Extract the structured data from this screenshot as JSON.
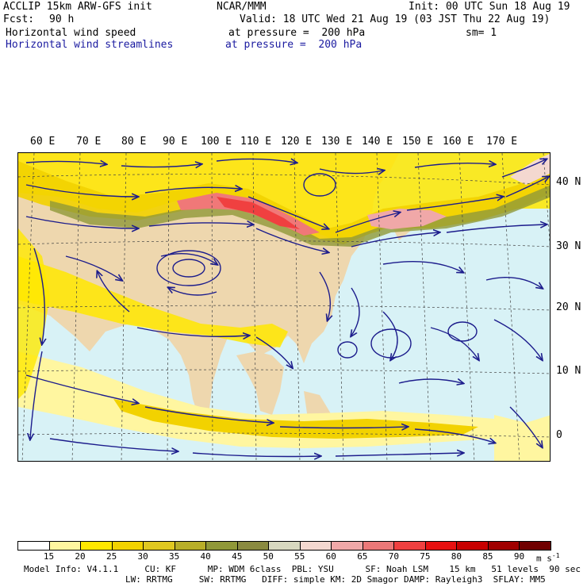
{
  "header": {
    "model": "ACCLIP 15km ARW-GFS init",
    "org": "NCAR/MMM",
    "init": "Init: 00 UTC Sun 18 Aug 19",
    "fcst_label": "Fcst:",
    "fcst_value": "90 h",
    "valid": "Valid: 18 UTC Wed 21 Aug 19 (03 JST Thu 22 Aug 19)",
    "field1": "Horizontal wind speed",
    "field1_level": "at pressure =  200 hPa",
    "sm": "sm= 1",
    "field2": "Horizontal wind streamlines",
    "field2_level": "at pressure =  200 hPa"
  },
  "map": {
    "lon_labels": [
      "60 E",
      "70 E",
      "80 E",
      "90 E",
      "100 E",
      "110 E",
      "120 E",
      "130 E",
      "140 E",
      "150 E",
      "160 E",
      "170 E"
    ],
    "lat_labels": [
      "40 N",
      "30 N",
      "20 N",
      "10 N",
      "0"
    ],
    "colors": {
      "ocean": "#d8f2f6",
      "land": "#eed7ae",
      "streamline": "#1c1c8c"
    }
  },
  "colorbar": {
    "levels": [
      "15",
      "20",
      "25",
      "30",
      "35",
      "40",
      "45",
      "50",
      "55",
      "60",
      "65",
      "70",
      "75",
      "80",
      "85",
      "90"
    ],
    "colors": [
      "#ffffff",
      "#fff6a0",
      "#ffe800",
      "#f2d200",
      "#e0c820",
      "#b8ae28",
      "#909838",
      "#8a8a40",
      "#d8d8c0",
      "#f4d8d0",
      "#f0a8a8",
      "#ec7878",
      "#f04040",
      "#e81010",
      "#c80000",
      "#a00000",
      "#700000"
    ],
    "unit": "m s",
    "unit_exp": "-1"
  },
  "footer": {
    "line1": "Model Info: V4.1.1     CU: KF      MP: WDM 6class  PBL: YSU      SF: Noah LSM    15 km   51 levels  90 sec",
    "line2": "LW: RRTMG     SW: RRTMG   DIFF: simple KM: 2D Smagor DAMP: Rayleigh3  SFLAY: MM5"
  }
}
